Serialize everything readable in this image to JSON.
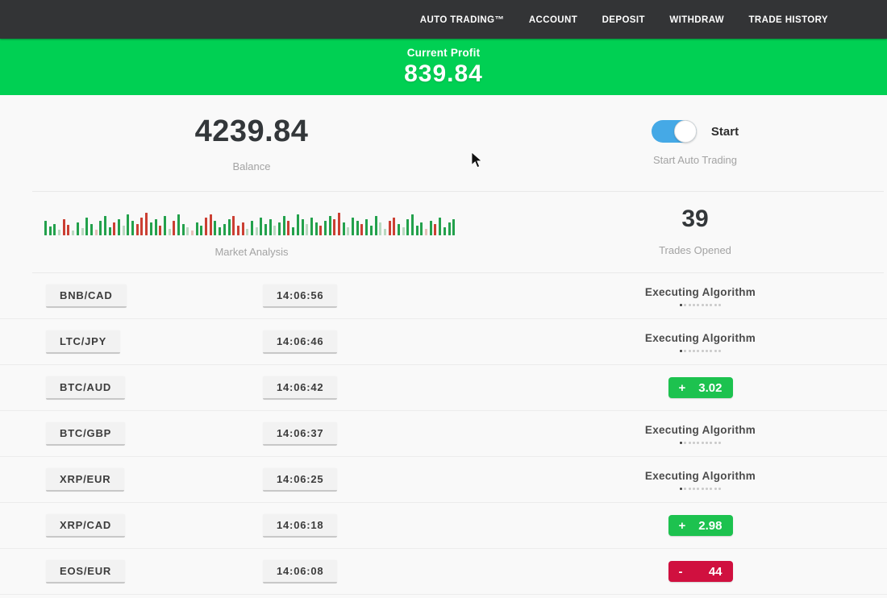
{
  "nav": {
    "items": [
      "AUTO TRADING™",
      "ACCOUNT",
      "DEPOSIT",
      "WITHDRAW",
      "TRADE HISTORY"
    ]
  },
  "banner": {
    "label": "Current Profit",
    "value": "839.84"
  },
  "stats": {
    "balance": {
      "value": "4239.84",
      "label": "Balance"
    },
    "auto_trading": {
      "toggle_label": "Start",
      "label": "Start Auto Trading",
      "enabled": true
    },
    "market": {
      "label": "Market Analysis"
    },
    "trades": {
      "value": "39",
      "label": "Trades Opened"
    }
  },
  "chart_data": {
    "type": "bar",
    "title": "Market Analysis",
    "legend": false,
    "axes": false,
    "colors": {
      "g": "#23a14c",
      "r": "#cb3f33",
      "lg": "#b9d9c0",
      "lr": "#e6beb8"
    },
    "bars": [
      [
        18,
        "g"
      ],
      [
        11,
        "g"
      ],
      [
        14,
        "g"
      ],
      [
        7,
        "lg"
      ],
      [
        20,
        "r"
      ],
      [
        13,
        "r"
      ],
      [
        6,
        "lg"
      ],
      [
        16,
        "g"
      ],
      [
        9,
        "lg"
      ],
      [
        22,
        "g"
      ],
      [
        14,
        "g"
      ],
      [
        7,
        "lr"
      ],
      [
        18,
        "g"
      ],
      [
        24,
        "g"
      ],
      [
        10,
        "g"
      ],
      [
        16,
        "r"
      ],
      [
        20,
        "g"
      ],
      [
        12,
        "lg"
      ],
      [
        26,
        "g"
      ],
      [
        18,
        "g"
      ],
      [
        14,
        "r"
      ],
      [
        22,
        "r"
      ],
      [
        28,
        "r"
      ],
      [
        16,
        "g"
      ],
      [
        20,
        "g"
      ],
      [
        12,
        "r"
      ],
      [
        24,
        "g"
      ],
      [
        8,
        "lg"
      ],
      [
        18,
        "r"
      ],
      [
        26,
        "g"
      ],
      [
        14,
        "g"
      ],
      [
        10,
        "lg"
      ],
      [
        6,
        "lr"
      ],
      [
        16,
        "g"
      ],
      [
        12,
        "g"
      ],
      [
        22,
        "r"
      ],
      [
        26,
        "r"
      ],
      [
        18,
        "g"
      ],
      [
        10,
        "g"
      ],
      [
        14,
        "g"
      ],
      [
        20,
        "g"
      ],
      [
        24,
        "r"
      ],
      [
        12,
        "r"
      ],
      [
        16,
        "r"
      ],
      [
        8,
        "lg"
      ],
      [
        18,
        "g"
      ],
      [
        10,
        "lg"
      ],
      [
        22,
        "g"
      ],
      [
        14,
        "g"
      ],
      [
        20,
        "g"
      ],
      [
        12,
        "lg"
      ],
      [
        16,
        "g"
      ],
      [
        24,
        "g"
      ],
      [
        18,
        "r"
      ],
      [
        10,
        "g"
      ],
      [
        26,
        "g"
      ],
      [
        20,
        "g"
      ],
      [
        14,
        "lg"
      ],
      [
        22,
        "g"
      ],
      [
        16,
        "g"
      ],
      [
        12,
        "r"
      ],
      [
        18,
        "g"
      ],
      [
        24,
        "g"
      ],
      [
        20,
        "r"
      ],
      [
        28,
        "r"
      ],
      [
        16,
        "g"
      ],
      [
        10,
        "lg"
      ],
      [
        22,
        "g"
      ],
      [
        18,
        "g"
      ],
      [
        14,
        "r"
      ],
      [
        20,
        "g"
      ],
      [
        12,
        "g"
      ],
      [
        24,
        "g"
      ],
      [
        16,
        "lg"
      ],
      [
        8,
        "lg"
      ],
      [
        18,
        "r"
      ],
      [
        22,
        "r"
      ],
      [
        14,
        "g"
      ],
      [
        10,
        "lg"
      ],
      [
        20,
        "g"
      ],
      [
        26,
        "g"
      ],
      [
        12,
        "g"
      ],
      [
        16,
        "g"
      ],
      [
        8,
        "lr"
      ],
      [
        18,
        "g"
      ],
      [
        14,
        "r"
      ],
      [
        22,
        "g"
      ],
      [
        10,
        "g"
      ],
      [
        16,
        "g"
      ],
      [
        20,
        "g"
      ]
    ]
  },
  "table": {
    "executing_label": "Executing Algorithm",
    "executing_dots": 10,
    "rows": [
      {
        "pair": "BNB/CAD",
        "time": "14:06:56",
        "status": "executing"
      },
      {
        "pair": "LTC/JPY",
        "time": "14:06:46",
        "status": "executing"
      },
      {
        "pair": "BTC/AUD",
        "time": "14:06:42",
        "status": "profit",
        "sign": "+",
        "value": "3.02"
      },
      {
        "pair": "BTC/GBP",
        "time": "14:06:37",
        "status": "executing"
      },
      {
        "pair": "XRP/EUR",
        "time": "14:06:25",
        "status": "executing"
      },
      {
        "pair": "XRP/CAD",
        "time": "14:06:18",
        "status": "profit",
        "sign": "+",
        "value": "2.98"
      },
      {
        "pair": "EOS/EUR",
        "time": "14:06:08",
        "status": "loss",
        "sign": "-",
        "value": "44"
      }
    ]
  },
  "theme": {
    "nav_bg": "#333436",
    "banner_green": "#00d053",
    "badge_green": "#1dc24f",
    "badge_red": "#d0103f",
    "toggle_blue": "#45a9e6"
  }
}
